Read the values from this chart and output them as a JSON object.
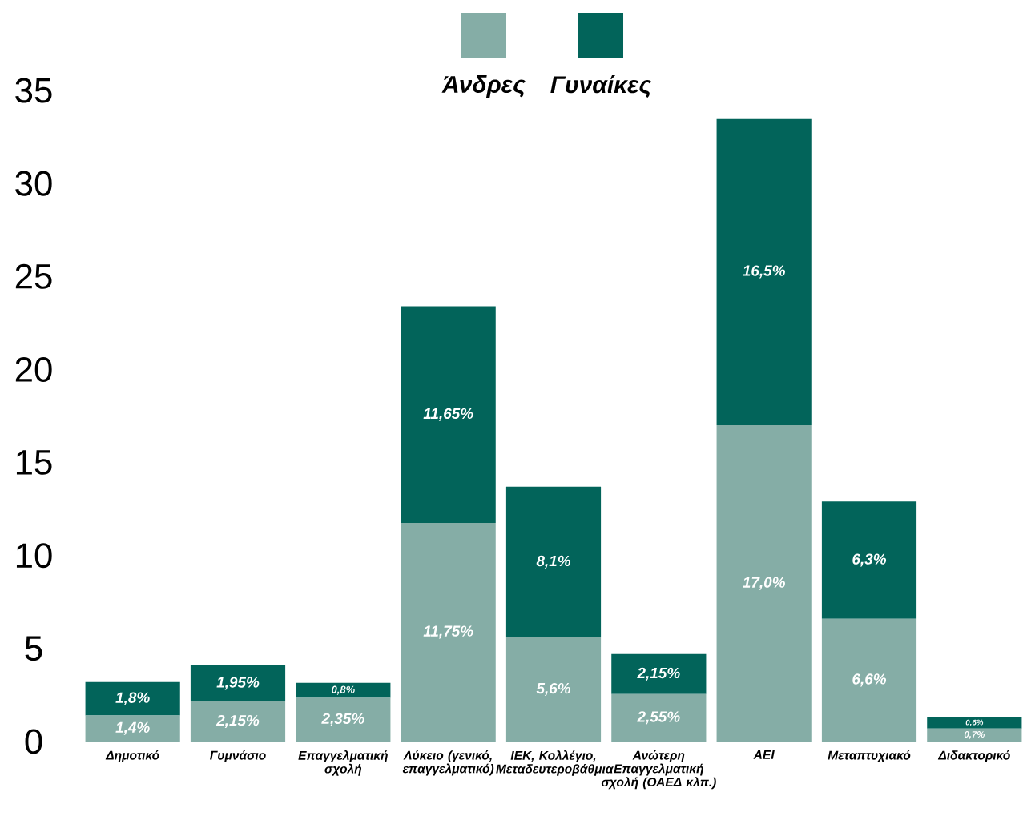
{
  "chart_data": {
    "type": "bar",
    "stacked": true,
    "legend": "top",
    "categories": [
      "Δημοτικό",
      "Γυμνάσιο",
      "Επαγγελματική σχολή",
      "Λύκειο (γενικό, επαγγελματικό)",
      "ΙΕΚ, Κολλέγιο, Μεταδευτεροβάθμια",
      "Ανώτερη Επαγγελματική σχολή (ΟΑΕΔ κλπ.)",
      "ΑΕΙ",
      "Μεταπτυχιακό",
      "Διδακτορικό"
    ],
    "series": [
      {
        "name": "Άνδρες",
        "color": "#85ada6",
        "values": [
          1.4,
          2.15,
          2.35,
          11.75,
          5.6,
          2.55,
          17.0,
          6.6,
          0.7
        ],
        "value_labels": [
          "1,4%",
          "2,15%",
          "2,35%",
          "11,75%",
          "5,6%",
          "2,55%",
          "17,0%",
          "6,6%",
          "0,7%"
        ]
      },
      {
        "name": "Γυναίκες",
        "color": "#02645a",
        "values": [
          1.8,
          1.95,
          0.8,
          11.65,
          8.1,
          2.15,
          16.5,
          6.3,
          0.6
        ],
        "value_labels": [
          "1,8%",
          "1,95%",
          "0,8%",
          "11,65%",
          "8,1%",
          "2,15%",
          "16,5%",
          "6,3%",
          "0,6%"
        ]
      }
    ],
    "ylim": [
      0,
      35
    ],
    "yticks": [
      0,
      5,
      10,
      15,
      20,
      25,
      30,
      35
    ]
  }
}
